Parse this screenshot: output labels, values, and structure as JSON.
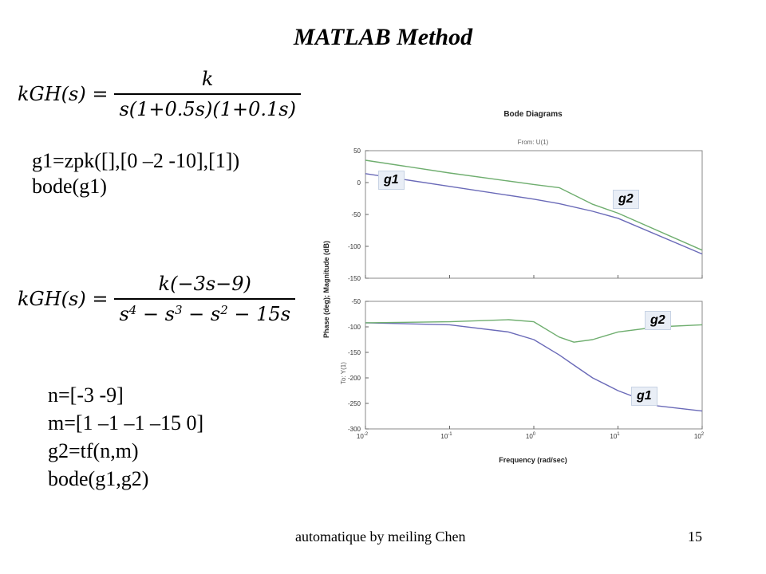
{
  "slide": {
    "title": "MATLAB Method",
    "footer": "automatique by meiling Chen",
    "page_number": "15"
  },
  "formula1": {
    "lhs": "kGH(s) =",
    "numerator": "k",
    "denominator": "s(1+0.5s)(1+0.1s)"
  },
  "formula2": {
    "lhs": "kGH(s) =",
    "numerator": "k(−3s−9)",
    "den_parts": [
      "s",
      "4",
      " − s",
      "3",
      " − s",
      "2",
      " − 15s"
    ]
  },
  "code1": [
    "g1=zpk([],[0 –2 -10],[1])",
    "bode(g1)"
  ],
  "code2": [
    "n=[-3 -9]",
    "m=[1 –1 –1 –15 0]",
    "g2=tf(n,m)",
    "bode(g1,g2)"
  ],
  "callouts": {
    "mag_g1": "g1",
    "mag_g2": "g2",
    "phase_g2": "g2",
    "phase_g1": "g1"
  },
  "chart_data": {
    "type": "line",
    "title": "Bode Diagrams",
    "subtitle": "From: U(1)",
    "xlabel": "Frequency (rad/sec)",
    "ylabel": "Phase (deg); Magnitude (dB)",
    "ylabel2": "To: Y(1)",
    "x_scale": "log",
    "xlim": [
      0.01,
      100
    ],
    "x_ticks": [
      0.01,
      0.1,
      1,
      10,
      100
    ],
    "x_tick_labels": [
      [
        "10",
        "-2"
      ],
      [
        "10",
        "-1"
      ],
      [
        "10",
        "0"
      ],
      [
        "10",
        "1"
      ],
      [
        "10",
        "2"
      ]
    ],
    "magnitude": {
      "ylim": [
        -150,
        50
      ],
      "y_ticks": [
        50,
        0,
        -50,
        -100,
        -150
      ],
      "x": [
        0.01,
        0.1,
        1,
        2,
        5,
        10,
        100
      ],
      "series": [
        {
          "name": "g1",
          "color": "#6a6ab8",
          "values": [
            14,
            -6,
            -26,
            -33,
            -45,
            -56,
            -112
          ]
        },
        {
          "name": "g2",
          "color": "#6fae6f",
          "values": [
            35,
            15,
            -3,
            -8,
            -34,
            -48,
            -106
          ]
        }
      ]
    },
    "phase": {
      "ylim": [
        -300,
        -50
      ],
      "y_ticks": [
        -50,
        -100,
        -150,
        -200,
        -250,
        -300
      ],
      "x": [
        0.01,
        0.1,
        0.5,
        1,
        2,
        3,
        5,
        10,
        30,
        100
      ],
      "series": [
        {
          "name": "g1",
          "color": "#6a6ab8",
          "values": [
            -92,
            -96,
            -110,
            -125,
            -155,
            -175,
            -200,
            -225,
            -255,
            -265
          ]
        },
        {
          "name": "g2",
          "color": "#6fae6f",
          "values": [
            -92,
            -90,
            -86,
            -90,
            -120,
            -130,
            -125,
            -110,
            -100,
            -96
          ]
        }
      ]
    },
    "grid": false
  }
}
